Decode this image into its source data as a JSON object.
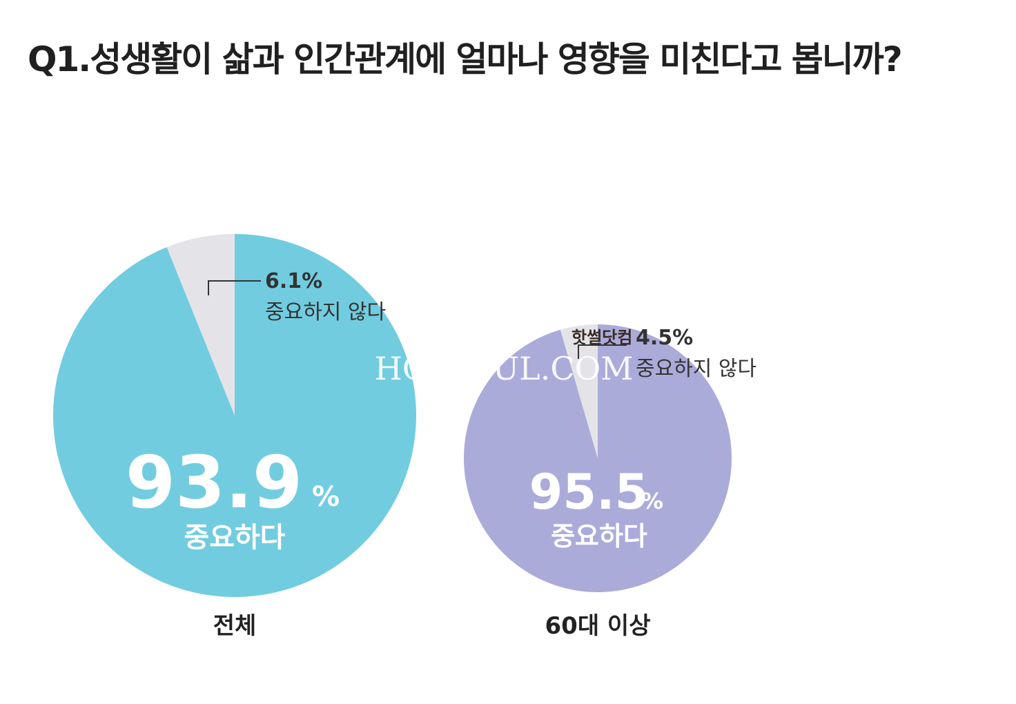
{
  "title": "Q1.성생활이 삶과 인간관계에 얼마나 영향을 미친다고 봅니까?",
  "watermark": "HOTSSUL.COM",
  "stamp_text": "핫썰닷컴",
  "colors": {
    "total_main": "#72CCDF",
    "senior_main": "#ABABDA",
    "minor": "#E4E4E8",
    "leader": "#333333"
  },
  "chart_data": [
    {
      "type": "pie",
      "category": "전체",
      "slices": [
        {
          "label": "중요하다",
          "value": 93.9,
          "display": "93.9",
          "unit": "%"
        },
        {
          "label": "중요하지 않다",
          "value": 6.1,
          "display": "6.1%"
        }
      ]
    },
    {
      "type": "pie",
      "category": "60대 이상",
      "slices": [
        {
          "label": "중요하다",
          "value": 95.5,
          "display": "95.5",
          "unit": "%"
        },
        {
          "label": "중요하지 않다",
          "value": 4.5,
          "display": "4.5%"
        }
      ]
    }
  ]
}
